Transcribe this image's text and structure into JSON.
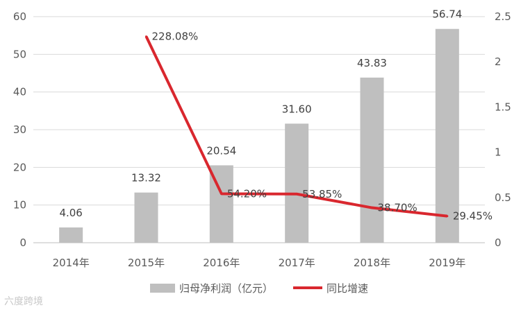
{
  "chart_data": {
    "type": "bar",
    "categories": [
      "2014年",
      "2015年",
      "2016年",
      "2017年",
      "2018年",
      "2019年"
    ],
    "series": [
      {
        "name": "归母净利润（亿元）",
        "type": "bar",
        "axis": "left",
        "color": "#bfbfbf",
        "values": [
          4.06,
          13.32,
          20.54,
          31.6,
          43.83,
          56.74
        ],
        "labels": [
          "4.06",
          "13.32",
          "20.54",
          "31.60",
          "43.83",
          "56.74"
        ]
      },
      {
        "name": "同比增速",
        "type": "line",
        "axis": "right",
        "color": "#d9272e",
        "values": [
          null,
          2.2808,
          0.542,
          0.5385,
          0.387,
          0.2945
        ],
        "labels": [
          null,
          "228.08%",
          "54.20%",
          "53.85%",
          "38.70%",
          "29.45%"
        ]
      }
    ],
    "y_left": {
      "min": 0,
      "max": 60,
      "ticks": [
        0,
        10,
        20,
        30,
        40,
        50,
        60
      ],
      "tick_labels": [
        "0",
        "10",
        "20",
        "30",
        "40",
        "50",
        "60"
      ]
    },
    "y_right": {
      "min": 0,
      "max": 2.5,
      "ticks": [
        0,
        0.5,
        1,
        1.5,
        2,
        2.5
      ],
      "tick_labels": [
        "0",
        "0.5",
        "1",
        "1.5",
        "2",
        "2.5"
      ]
    },
    "grid": true,
    "legend_position": "bottom"
  },
  "watermark": "六度跨境"
}
